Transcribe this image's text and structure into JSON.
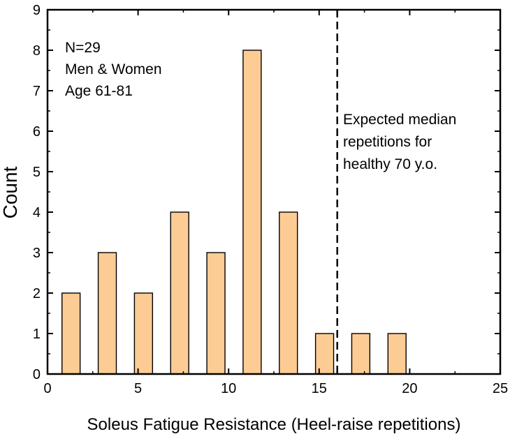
{
  "chart_data": {
    "type": "bar",
    "bins": [
      {
        "x0": 0.8,
        "x1": 1.8,
        "x": 1,
        "value": 2
      },
      {
        "x0": 2.8,
        "x1": 3.8,
        "x": 3,
        "value": 3
      },
      {
        "x0": 4.8,
        "x1": 5.8,
        "x": 5,
        "value": 2
      },
      {
        "x0": 6.8,
        "x1": 7.8,
        "x": 7,
        "value": 4
      },
      {
        "x0": 8.8,
        "x1": 9.8,
        "x": 9,
        "value": 3
      },
      {
        "x0": 10.8,
        "x1": 11.8,
        "x": 11,
        "value": 8
      },
      {
        "x0": 12.8,
        "x1": 13.8,
        "x": 13,
        "value": 4
      },
      {
        "x0": 14.8,
        "x1": 15.8,
        "x": 15,
        "value": 1
      },
      {
        "x0": 16.8,
        "x1": 17.8,
        "x": 17,
        "value": 1
      },
      {
        "x0": 18.8,
        "x1": 19.8,
        "x": 19,
        "value": 1
      }
    ],
    "xlabel": "Soleus Fatigue Resistance (Heel-raise repetitions)",
    "ylabel": "Count",
    "xlim": [
      0,
      25
    ],
    "ylim": [
      0,
      9
    ],
    "xticks": [
      0,
      5,
      10,
      15,
      20,
      25
    ],
    "yticks": [
      0,
      1,
      2,
      3,
      4,
      5,
      6,
      7,
      8,
      9
    ],
    "grid": false,
    "colors": {
      "bar_fill": "#FDCC94",
      "bar_edge": "#000000",
      "reference_line": "#000000"
    },
    "reference_line": {
      "x": 16,
      "style": "dashed"
    },
    "annotations": {
      "sample": [
        "N=29",
        "Men & Women",
        "Age 61-81"
      ],
      "reference": [
        "Expected median",
        "repetitions for",
        "healthy 70 y.o."
      ]
    }
  }
}
